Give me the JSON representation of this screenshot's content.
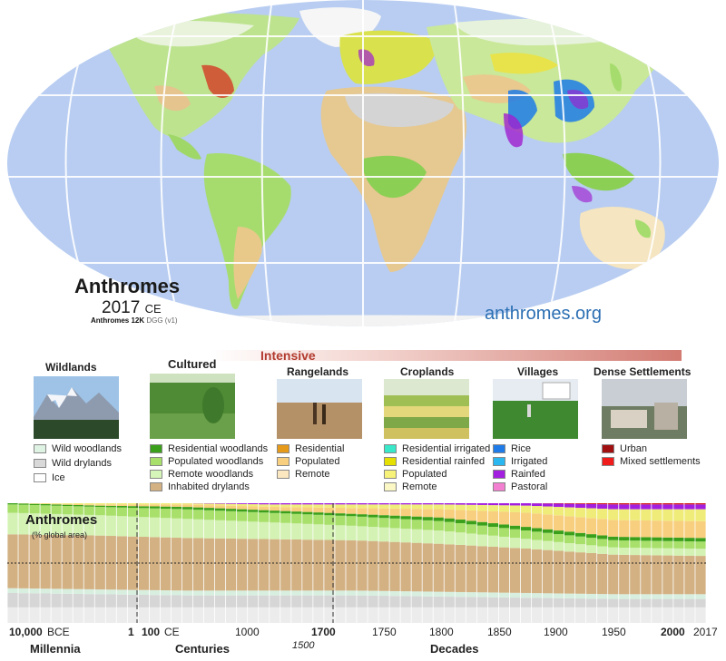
{
  "map": {
    "title": "Anthromes",
    "year": "2017",
    "year_suffix": "CE",
    "dataset_bold": "Anthromes 12K",
    "dataset_rest": "DGG (v1)",
    "site": "anthromes.org"
  },
  "intensity": {
    "label": "Intensive"
  },
  "legend": {
    "wildlands": {
      "title": "Wildlands",
      "items": [
        {
          "label": "Wild woodlands",
          "color": "#dff3e4"
        },
        {
          "label": "Wild drylands",
          "color": "#d9d9d9"
        },
        {
          "label": "Ice",
          "color": "#ffffff"
        }
      ]
    },
    "cultured": {
      "title": "Cultured",
      "items": [
        {
          "label": "Residential woodlands",
          "color": "#3aa01b"
        },
        {
          "label": "Populated woodlands",
          "color": "#a8e06b"
        },
        {
          "label": "Remote woodlands",
          "color": "#d6f5b8"
        },
        {
          "label": "Inhabited drylands",
          "color": "#d3b183"
        }
      ]
    },
    "rangelands": {
      "title": "Rangelands",
      "items": [
        {
          "label": "Residential",
          "color": "#e69a1a"
        },
        {
          "label": "Populated",
          "color": "#f8cf7e"
        },
        {
          "label": "Remote",
          "color": "#fbe8c0"
        }
      ]
    },
    "croplands": {
      "title": "Croplands",
      "items": [
        {
          "label": "Residential irrigated",
          "color": "#39e8c9"
        },
        {
          "label": "Residential rainfed",
          "color": "#e5e000"
        },
        {
          "label": "Populated",
          "color": "#f7f27a"
        },
        {
          "label": "Remote",
          "color": "#fbf8c6"
        }
      ]
    },
    "villages": {
      "title": "Villages",
      "items": [
        {
          "label": "Rice",
          "color": "#1f7be8"
        },
        {
          "label": "Irrigated",
          "color": "#2ab6ef"
        },
        {
          "label": "Rainfed",
          "color": "#a21fe0"
        },
        {
          "label": "Pastoral",
          "color": "#f27fcf"
        }
      ]
    },
    "dense": {
      "title": "Dense Settlements",
      "items": [
        {
          "label": "Urban",
          "color": "#a01010"
        },
        {
          "label": "Mixed settlements",
          "color": "#f01c1c"
        }
      ]
    }
  },
  "timeline": {
    "title": "Anthromes",
    "subtitle": "(% global area)",
    "ticks": {
      "t10k": "10,000",
      "bce": "BCE",
      "t1": "1",
      "t100": "100",
      "ce": "CE",
      "t1000": "1000",
      "t1500": "1500",
      "t1700": "1700",
      "t1750": "1750",
      "t1800": "1800",
      "t1850": "1850",
      "t1900": "1900",
      "t1950": "1950",
      "t2000": "2000",
      "t2017": "2017"
    },
    "eras": {
      "millennia": "Millennia",
      "centuries": "Centuries",
      "decades": "Decades"
    }
  },
  "chart_data": {
    "type": "area",
    "title": "Anthromes",
    "ylabel": "(% global area)",
    "x": [
      "10,000 BCE",
      "1",
      "1000",
      "1500",
      "1700",
      "1800",
      "1900",
      "2000",
      "2017"
    ],
    "series": [
      {
        "name": "Ice",
        "values": [
          13,
          13,
          13,
          13,
          13,
          13,
          13,
          13,
          13
        ]
      },
      {
        "name": "Wild drylands",
        "values": [
          12,
          11,
          10,
          10,
          10,
          9,
          8,
          7,
          7
        ]
      },
      {
        "name": "Wild woodlands",
        "values": [
          4,
          4,
          4,
          4,
          4,
          4,
          4,
          4,
          4
        ]
      },
      {
        "name": "Inhabited drylands",
        "values": [
          45,
          45,
          44,
          43,
          42,
          40,
          37,
          33,
          32
        ]
      },
      {
        "name": "Remote woodlands",
        "values": [
          18,
          17,
          16,
          14,
          12,
          11,
          8,
          6,
          6
        ]
      },
      {
        "name": "Populated woodlands",
        "values": [
          7,
          7,
          8,
          8,
          8,
          8,
          7,
          6,
          6
        ]
      },
      {
        "name": "Residential woodlands",
        "values": [
          1,
          1,
          2,
          2,
          2,
          3,
          3,
          3,
          3
        ]
      },
      {
        "name": "Rangelands",
        "values": [
          0,
          1,
          2,
          3,
          5,
          7,
          12,
          14,
          14
        ]
      },
      {
        "name": "Croplands",
        "values": [
          0,
          1,
          1,
          2,
          3,
          4,
          6,
          9,
          10
        ]
      },
      {
        "name": "Villages",
        "values": [
          0,
          0,
          0,
          1,
          1,
          1,
          2,
          4,
          4
        ]
      },
      {
        "name": "Dense Settlements",
        "values": [
          0,
          0,
          0,
          0,
          0,
          0,
          0,
          1,
          1
        ]
      }
    ]
  }
}
